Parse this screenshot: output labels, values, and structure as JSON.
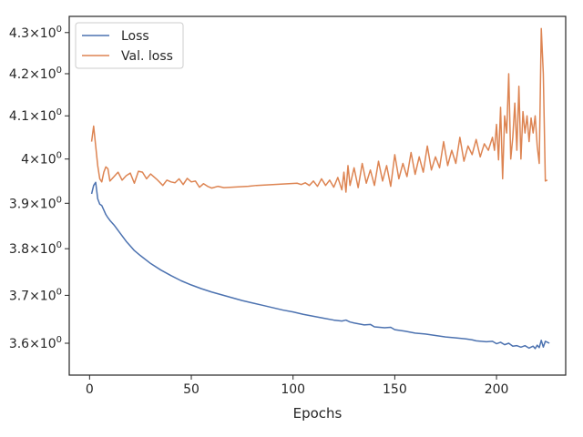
{
  "chart_data": {
    "type": "line",
    "title": "",
    "xlabel": "Epochs",
    "ylabel": "",
    "yscale": "log",
    "xlim": [
      -10,
      234
    ],
    "ylim": [
      3.535,
      4.34
    ],
    "grid": false,
    "legend_position": "top-left",
    "x_ticks": [
      0,
      50,
      100,
      150,
      200
    ],
    "x_tick_labels": [
      "0",
      "50",
      "100",
      "150",
      "200"
    ],
    "y_ticks": [
      3.6,
      3.7,
      3.8,
      3.9,
      4.0,
      4.1,
      4.2,
      4.3
    ],
    "y_tick_labels": [
      {
        "base": "3.6",
        "exp": "0"
      },
      {
        "base": "3.7",
        "exp": "0"
      },
      {
        "base": "3.8",
        "exp": "0"
      },
      {
        "base": "3.9",
        "exp": "0"
      },
      {
        "base": "4",
        "exp": "0"
      },
      {
        "base": "4.1",
        "exp": "0"
      },
      {
        "base": "4.2",
        "exp": "0"
      },
      {
        "base": "4.3",
        "exp": "0"
      }
    ],
    "series": [
      {
        "name": "Loss",
        "color": "#4c72b0",
        "points": [
          [
            1,
            3.921
          ],
          [
            2,
            3.94
          ],
          [
            3,
            3.947
          ],
          [
            4,
            3.91
          ],
          [
            5,
            3.898
          ],
          [
            6,
            3.895
          ],
          [
            7,
            3.885
          ],
          [
            8,
            3.875
          ],
          [
            9,
            3.868
          ],
          [
            10,
            3.862
          ],
          [
            12,
            3.852
          ],
          [
            14,
            3.84
          ],
          [
            16,
            3.828
          ],
          [
            18,
            3.816
          ],
          [
            20,
            3.806
          ],
          [
            22,
            3.796
          ],
          [
            25,
            3.785
          ],
          [
            30,
            3.768
          ],
          [
            35,
            3.754
          ],
          [
            40,
            3.742
          ],
          [
            45,
            3.731
          ],
          [
            50,
            3.722
          ],
          [
            55,
            3.714
          ],
          [
            60,
            3.707
          ],
          [
            65,
            3.701
          ],
          [
            70,
            3.695
          ],
          [
            75,
            3.689
          ],
          [
            80,
            3.684
          ],
          [
            85,
            3.679
          ],
          [
            90,
            3.674
          ],
          [
            95,
            3.669
          ],
          [
            100,
            3.665
          ],
          [
            105,
            3.66
          ],
          [
            110,
            3.656
          ],
          [
            115,
            3.652
          ],
          [
            120,
            3.648
          ],
          [
            124,
            3.646
          ],
          [
            126,
            3.648
          ],
          [
            128,
            3.644
          ],
          [
            130,
            3.642
          ],
          [
            135,
            3.638
          ],
          [
            138,
            3.639
          ],
          [
            140,
            3.634
          ],
          [
            145,
            3.632
          ],
          [
            148,
            3.633
          ],
          [
            150,
            3.628
          ],
          [
            155,
            3.625
          ],
          [
            160,
            3.621
          ],
          [
            165,
            3.619
          ],
          [
            170,
            3.616
          ],
          [
            175,
            3.613
          ],
          [
            180,
            3.611
          ],
          [
            185,
            3.609
          ],
          [
            188,
            3.607
          ],
          [
            190,
            3.605
          ],
          [
            195,
            3.603
          ],
          [
            198,
            3.604
          ],
          [
            200,
            3.599
          ],
          [
            202,
            3.602
          ],
          [
            204,
            3.597
          ],
          [
            206,
            3.6
          ],
          [
            208,
            3.594
          ],
          [
            210,
            3.595
          ],
          [
            212,
            3.592
          ],
          [
            214,
            3.595
          ],
          [
            216,
            3.59
          ],
          [
            218,
            3.594
          ],
          [
            219,
            3.589
          ],
          [
            220,
            3.596
          ],
          [
            221,
            3.591
          ],
          [
            222,
            3.606
          ],
          [
            223,
            3.592
          ],
          [
            224,
            3.604
          ],
          [
            225,
            3.602
          ],
          [
            226,
            3.6
          ]
        ]
      },
      {
        "name": "Val. loss",
        "color": "#dd8452",
        "points": [
          [
            1,
            4.04
          ],
          [
            2,
            4.076
          ],
          [
            3,
            4.03
          ],
          [
            4,
            3.985
          ],
          [
            5,
            3.955
          ],
          [
            6,
            3.948
          ],
          [
            7,
            3.97
          ],
          [
            8,
            3.982
          ],
          [
            9,
            3.978
          ],
          [
            10,
            3.95
          ],
          [
            12,
            3.96
          ],
          [
            14,
            3.97
          ],
          [
            16,
            3.952
          ],
          [
            18,
            3.962
          ],
          [
            20,
            3.968
          ],
          [
            22,
            3.945
          ],
          [
            24,
            3.972
          ],
          [
            26,
            3.97
          ],
          [
            28,
            3.955
          ],
          [
            30,
            3.966
          ],
          [
            33,
            3.954
          ],
          [
            36,
            3.94
          ],
          [
            38,
            3.952
          ],
          [
            40,
            3.948
          ],
          [
            42,
            3.946
          ],
          [
            44,
            3.955
          ],
          [
            46,
            3.942
          ],
          [
            48,
            3.956
          ],
          [
            50,
            3.948
          ],
          [
            52,
            3.95
          ],
          [
            54,
            3.936
          ],
          [
            56,
            3.944
          ],
          [
            58,
            3.938
          ],
          [
            60,
            3.934
          ],
          [
            63,
            3.938
          ],
          [
            66,
            3.935
          ],
          [
            70,
            3.936
          ],
          [
            74,
            3.937
          ],
          [
            78,
            3.938
          ],
          [
            82,
            3.94
          ],
          [
            86,
            3.941
          ],
          [
            90,
            3.942
          ],
          [
            94,
            3.943
          ],
          [
            98,
            3.944
          ],
          [
            102,
            3.945
          ],
          [
            104,
            3.942
          ],
          [
            106,
            3.946
          ],
          [
            108,
            3.94
          ],
          [
            110,
            3.95
          ],
          [
            112,
            3.938
          ],
          [
            114,
            3.955
          ],
          [
            116,
            3.94
          ],
          [
            118,
            3.952
          ],
          [
            120,
            3.936
          ],
          [
            122,
            3.958
          ],
          [
            124,
            3.93
          ],
          [
            125,
            3.97
          ],
          [
            126,
            3.925
          ],
          [
            127,
            3.985
          ],
          [
            128,
            3.94
          ],
          [
            130,
            3.98
          ],
          [
            132,
            3.935
          ],
          [
            134,
            3.99
          ],
          [
            136,
            3.945
          ],
          [
            138,
            3.975
          ],
          [
            140,
            3.94
          ],
          [
            142,
            3.995
          ],
          [
            144,
            3.95
          ],
          [
            146,
            3.985
          ],
          [
            148,
            3.938
          ],
          [
            150,
            4.01
          ],
          [
            152,
            3.955
          ],
          [
            154,
            3.99
          ],
          [
            156,
            3.96
          ],
          [
            158,
            4.015
          ],
          [
            160,
            3.965
          ],
          [
            162,
            4.005
          ],
          [
            164,
            3.97
          ],
          [
            166,
            4.03
          ],
          [
            168,
            3.975
          ],
          [
            170,
            4.005
          ],
          [
            172,
            3.98
          ],
          [
            174,
            4.04
          ],
          [
            176,
            3.985
          ],
          [
            178,
            4.02
          ],
          [
            180,
            3.99
          ],
          [
            182,
            4.05
          ],
          [
            184,
            3.995
          ],
          [
            186,
            4.03
          ],
          [
            188,
            4.01
          ],
          [
            190,
            4.045
          ],
          [
            192,
            4.005
          ],
          [
            194,
            4.035
          ],
          [
            196,
            4.02
          ],
          [
            198,
            4.05
          ],
          [
            199,
            4.02
          ],
          [
            200,
            4.08
          ],
          [
            201,
            3.998
          ],
          [
            202,
            4.12
          ],
          [
            203,
            3.955
          ],
          [
            204,
            4.1
          ],
          [
            205,
            4.06
          ],
          [
            206,
            4.2
          ],
          [
            207,
            4.0
          ],
          [
            208,
            4.05
          ],
          [
            209,
            4.13
          ],
          [
            210,
            4.02
          ],
          [
            211,
            4.17
          ],
          [
            212,
            4.0
          ],
          [
            213,
            4.11
          ],
          [
            214,
            4.06
          ],
          [
            215,
            4.1
          ],
          [
            216,
            4.04
          ],
          [
            217,
            4.095
          ],
          [
            218,
            4.06
          ],
          [
            219,
            4.1
          ],
          [
            220,
            4.03
          ],
          [
            221,
            3.99
          ],
          [
            222,
            4.31
          ],
          [
            223,
            4.2
          ],
          [
            224,
            3.95
          ],
          [
            225,
            3.952
          ]
        ]
      }
    ]
  }
}
